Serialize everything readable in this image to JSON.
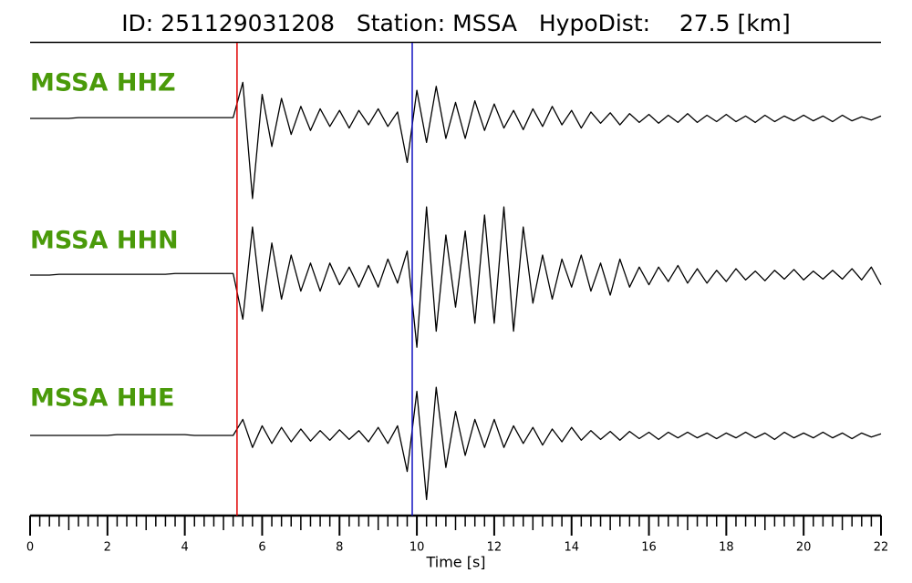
{
  "chart_data": {
    "type": "waveform",
    "title": "ID: 251129031208   Station: MSSA   HypoDist:    27.5 [km]",
    "xlabel": "Time [s]",
    "xlim": [
      0,
      22
    ],
    "xticks": [
      0,
      2,
      4,
      6,
      8,
      10,
      12,
      14,
      16,
      18,
      20,
      22
    ],
    "minor_tick_interval": 0.25,
    "ylim": [
      -1,
      1
    ],
    "label_color": "#4a9a0a",
    "picks": [
      {
        "time": 5.35,
        "color": "#e00000"
      },
      {
        "time": 9.88,
        "color": "#1010c0"
      }
    ],
    "x": [
      0,
      0.25,
      0.5,
      0.75,
      1,
      1.25,
      1.5,
      1.75,
      2,
      2.25,
      2.5,
      2.75,
      3,
      3.25,
      3.5,
      3.75,
      4,
      4.25,
      4.5,
      4.75,
      5,
      5.25,
      5.5,
      5.75,
      6,
      6.25,
      6.5,
      6.75,
      7,
      7.25,
      7.5,
      7.75,
      8,
      8.25,
      8.5,
      8.75,
      9,
      9.25,
      9.5,
      9.75,
      10,
      10.25,
      10.5,
      10.75,
      11,
      11.25,
      11.5,
      11.75,
      12,
      12.25,
      12.5,
      12.75,
      13,
      13.25,
      13.5,
      13.75,
      14,
      14.25,
      14.5,
      14.75,
      15,
      15.25,
      15.5,
      15.75,
      16,
      16.25,
      16.5,
      16.75,
      17,
      17.25,
      17.5,
      17.75,
      18,
      18.25,
      18.5,
      18.75,
      19,
      19.25,
      19.5,
      19.75,
      20,
      20.25,
      20.5,
      20.75,
      21,
      21.25,
      21.5,
      21.75,
      22
    ],
    "series": [
      {
        "name": "MSSA HHZ",
        "color": "#000000",
        "values": [
          0,
          0,
          0,
          0,
          0,
          0.01,
          0.01,
          0.01,
          0.01,
          0.01,
          0.01,
          0.01,
          0.01,
          0.01,
          0.01,
          0.01,
          0.01,
          0.01,
          0.01,
          0.01,
          0.01,
          0.01,
          0.45,
          -1.0,
          0.3,
          -0.35,
          0.25,
          -0.2,
          0.15,
          -0.15,
          0.12,
          -0.1,
          0.1,
          -0.12,
          0.1,
          -0.08,
          0.12,
          -0.1,
          0.08,
          -0.55,
          0.35,
          -0.3,
          0.4,
          -0.25,
          0.2,
          -0.25,
          0.22,
          -0.15,
          0.18,
          -0.12,
          0.1,
          -0.14,
          0.12,
          -0.1,
          0.15,
          -0.08,
          0.1,
          -0.12,
          0.08,
          -0.06,
          0.07,
          -0.08,
          0.06,
          -0.05,
          0.05,
          -0.06,
          0.04,
          -0.05,
          0.06,
          -0.05,
          0.04,
          -0.04,
          0.05,
          -0.04,
          0.03,
          -0.05,
          0.04,
          -0.04,
          0.03,
          -0.03,
          0.04,
          -0.03,
          0.03,
          -0.04,
          0.04,
          -0.03,
          0.02,
          -0.02,
          0.03
        ]
      },
      {
        "name": "MSSA HHN",
        "color": "#000000",
        "values": [
          0,
          0,
          0,
          0.01,
          0.01,
          0.01,
          0.01,
          0.01,
          0.01,
          0.01,
          0.01,
          0.01,
          0.01,
          0.01,
          0.01,
          0.02,
          0.02,
          0.02,
          0.02,
          0.02,
          0.02,
          0.02,
          -0.55,
          0.6,
          -0.45,
          0.4,
          -0.3,
          0.25,
          -0.2,
          0.15,
          -0.2,
          0.15,
          -0.12,
          0.1,
          -0.15,
          0.12,
          -0.15,
          0.2,
          -0.1,
          0.3,
          -0.9,
          0.85,
          -0.7,
          0.5,
          -0.4,
          0.55,
          -0.6,
          0.75,
          -0.6,
          0.85,
          -0.7,
          0.6,
          -0.35,
          0.25,
          -0.3,
          0.2,
          -0.15,
          0.25,
          -0.2,
          0.15,
          -0.25,
          0.2,
          -0.15,
          0.1,
          -0.12,
          0.1,
          -0.08,
          0.12,
          -0.1,
          0.08,
          -0.1,
          0.06,
          -0.08,
          0.08,
          -0.06,
          0.05,
          -0.07,
          0.06,
          -0.05,
          0.07,
          -0.06,
          0.05,
          -0.05,
          0.06,
          -0.05,
          0.08,
          -0.06,
          0.1,
          -0.12
        ]
      },
      {
        "name": "MSSA HHE",
        "color": "#000000",
        "values": [
          0,
          0,
          0,
          0,
          0,
          0,
          0,
          0,
          0,
          0.01,
          0.01,
          0.01,
          0.01,
          0.01,
          0.01,
          0.01,
          0.01,
          0,
          0,
          0,
          0,
          0,
          0.2,
          -0.15,
          0.12,
          -0.1,
          0.1,
          -0.08,
          0.08,
          -0.07,
          0.06,
          -0.06,
          0.07,
          -0.05,
          0.06,
          -0.08,
          0.1,
          -0.1,
          0.12,
          -0.45,
          0.55,
          -0.8,
          0.6,
          -0.4,
          0.3,
          -0.25,
          0.2,
          -0.15,
          0.2,
          -0.15,
          0.12,
          -0.1,
          0.1,
          -0.12,
          0.08,
          -0.08,
          0.1,
          -0.06,
          0.06,
          -0.05,
          0.05,
          -0.06,
          0.05,
          -0.04,
          0.04,
          -0.05,
          0.04,
          -0.03,
          0.04,
          -0.03,
          0.03,
          -0.04,
          0.03,
          -0.03,
          0.04,
          -0.03,
          0.03,
          -0.05,
          0.04,
          -0.03,
          0.03,
          -0.03,
          0.04,
          -0.03,
          0.03,
          -0.04,
          0.03,
          -0.02,
          0.02
        ]
      }
    ]
  }
}
